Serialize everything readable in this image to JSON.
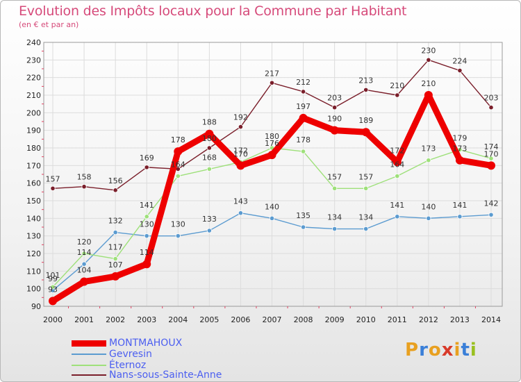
{
  "title": "Evolution des Impôts locaux pour la Commune par Habitant",
  "subtitle": "(en € et par an)",
  "chart_data": {
    "type": "line",
    "title": "Evolution des Impôts locaux pour la Commune par Habitant",
    "ylabel": "(en € et par an)",
    "xlabel": "",
    "ylim": [
      90,
      240
    ],
    "yticks": [
      "90",
      "100",
      "110",
      "120",
      "130",
      "140",
      "150",
      "160",
      "170",
      "180",
      "190",
      "200",
      "210",
      "220",
      "230",
      "240"
    ],
    "categories": [
      "2000",
      "2001",
      "2002",
      "2003",
      "2004",
      "2005",
      "2006",
      "2007",
      "2008",
      "2009",
      "2010",
      "2011",
      "2012",
      "2013",
      "2014"
    ],
    "grid": true,
    "series": [
      {
        "name": "Nans-sous-Sainte-Anne",
        "color": "#7a1e2a",
        "values": [
          157,
          158,
          156,
          169,
          168,
          180,
          192,
          217,
          212,
          203,
          213,
          210,
          230,
          224,
          203
        ],
        "labels": [
          "157",
          "158",
          "156",
          "169",
          "",
          "180",
          "192",
          "217",
          "212",
          "203",
          "213",
          "210",
          "230",
          "224",
          "203"
        ]
      },
      {
        "name": "Gevresin",
        "color": "#5b9bd0",
        "values": [
          99,
          114,
          132,
          130,
          130,
          133,
          143,
          140,
          135,
          134,
          134,
          141,
          140,
          141,
          142
        ],
        "labels": [
          "99",
          "114",
          "132",
          "130",
          "130",
          "133",
          "143",
          "140",
          "135",
          "134",
          "134",
          "141",
          "140",
          "141",
          "142"
        ]
      },
      {
        "name": "Éternoz",
        "color": "#9ee07a",
        "values": [
          101,
          120,
          117,
          141,
          164,
          168,
          172,
          180,
          178,
          157,
          157,
          164,
          173,
          179,
          174
        ],
        "labels": [
          "101",
          "120",
          "117",
          "141",
          "164",
          "168",
          "172",
          "180",
          "178",
          "157",
          "157",
          "164",
          "173",
          "179",
          "174"
        ]
      },
      {
        "name": "MONTMAHOUX",
        "color": "#ee0000",
        "values": [
          93,
          104,
          107,
          114,
          178,
          188,
          170,
          176,
          197,
          190,
          189,
          172,
          210,
          173,
          170
        ],
        "labels": [
          "93",
          "104",
          "107",
          "114",
          "178",
          "188",
          "170",
          "176",
          "197",
          "190",
          "189",
          "172",
          "210",
          "173",
          "170"
        ]
      }
    ]
  },
  "legend": [
    {
      "label": "MONTMAHOUX",
      "color": "#ee0000"
    },
    {
      "label": "Gevresin",
      "color": "#5b9bd0"
    },
    {
      "label": "Éternoz",
      "color": "#9ee07a"
    },
    {
      "label": "Nans-sous-Sainte-Anne",
      "color": "#7a1e2a"
    }
  ],
  "logo": {
    "text": "Proxiti",
    "colors": [
      "#e8a020",
      "#3a7fd8",
      "#e8a020",
      "#d83a2a",
      "#e8a020",
      "#3a7fd8",
      "#9ac020"
    ]
  }
}
